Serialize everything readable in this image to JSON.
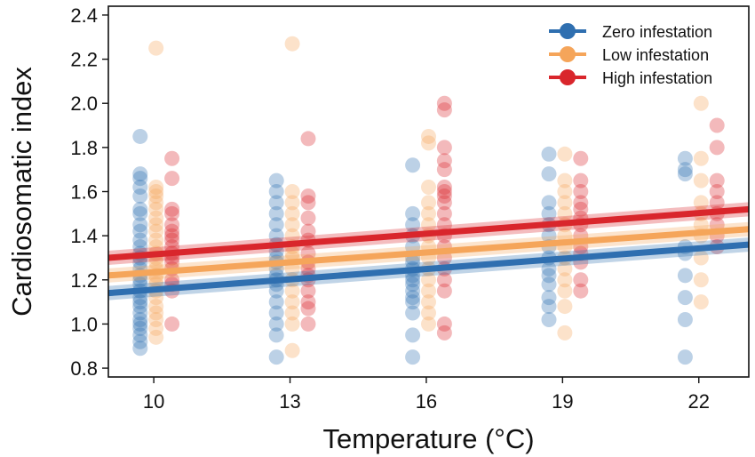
{
  "chart_data": {
    "type": "scatter",
    "xlabel": "Temperature (°C)",
    "ylabel": "Cardiosomatic index",
    "xlim": [
      9.0,
      23.1
    ],
    "ylim": [
      0.76,
      2.44
    ],
    "xticks": [
      10,
      13,
      16,
      19,
      22
    ],
    "xtick_labels": [
      "10",
      "13",
      "16",
      "19",
      "22"
    ],
    "yticks": [
      0.8,
      1.0,
      1.2,
      1.4,
      1.6,
      1.8,
      2.0,
      2.2,
      2.4
    ],
    "ytick_labels": [
      "0.8",
      "1.0",
      "1.2",
      "1.4",
      "1.6",
      "1.8",
      "2.0",
      "2.2",
      "2.4"
    ],
    "grid": false,
    "legend_position": "top-right",
    "series": [
      {
        "name": "Zero infestation",
        "color": "#2f6fb0",
        "jitter": -0.3,
        "fit": {
          "x": [
            9.0,
            23.1
          ],
          "y": [
            1.14,
            1.36
          ]
        },
        "points": [
          {
            "x": 10,
            "y": [
              0.89,
              0.92,
              0.95,
              0.98,
              1.0,
              1.02,
              1.05,
              1.08,
              1.1,
              1.12,
              1.15,
              1.18,
              1.2,
              1.22,
              1.25,
              1.28,
              1.3,
              1.32,
              1.35,
              1.38,
              1.42,
              1.45,
              1.5,
              1.52,
              1.58,
              1.62,
              1.66,
              1.68,
              1.85
            ]
          },
          {
            "x": 13,
            "y": [
              0.85,
              0.95,
              1.0,
              1.05,
              1.1,
              1.15,
              1.18,
              1.2,
              1.22,
              1.25,
              1.28,
              1.3,
              1.33,
              1.36,
              1.4,
              1.45,
              1.5,
              1.55,
              1.6,
              1.65
            ]
          },
          {
            "x": 16,
            "y": [
              0.85,
              0.95,
              1.05,
              1.1,
              1.12,
              1.15,
              1.18,
              1.2,
              1.22,
              1.25,
              1.28,
              1.3,
              1.35,
              1.4,
              1.45,
              1.5,
              1.72
            ]
          },
          {
            "x": 19,
            "y": [
              1.02,
              1.08,
              1.12,
              1.18,
              1.22,
              1.25,
              1.3,
              1.35,
              1.4,
              1.45,
              1.5,
              1.55,
              1.68,
              1.77
            ]
          },
          {
            "x": 22,
            "y": [
              0.85,
              1.02,
              1.12,
              1.22,
              1.32,
              1.35,
              1.68,
              1.7,
              1.75
            ]
          }
        ]
      },
      {
        "name": "Low infestation",
        "color": "#f5a55a",
        "jitter": 0.05,
        "fit": {
          "x": [
            9.0,
            23.1
          ],
          "y": [
            1.22,
            1.43
          ]
        },
        "points": [
          {
            "x": 10,
            "y": [
              0.94,
              0.98,
              1.02,
              1.05,
              1.08,
              1.12,
              1.15,
              1.18,
              1.2,
              1.22,
              1.25,
              1.28,
              1.3,
              1.32,
              1.35,
              1.38,
              1.42,
              1.45,
              1.48,
              1.52,
              1.55,
              1.58,
              1.6,
              1.62,
              2.25
            ]
          },
          {
            "x": 13,
            "y": [
              0.88,
              1.0,
              1.05,
              1.1,
              1.15,
              1.2,
              1.25,
              1.3,
              1.32,
              1.35,
              1.4,
              1.45,
              1.5,
              1.55,
              1.6,
              2.27
            ]
          },
          {
            "x": 16,
            "y": [
              1.0,
              1.05,
              1.1,
              1.15,
              1.2,
              1.25,
              1.3,
              1.35,
              1.4,
              1.45,
              1.5,
              1.55,
              1.62,
              1.82,
              1.85
            ]
          },
          {
            "x": 19,
            "y": [
              0.96,
              1.08,
              1.15,
              1.2,
              1.25,
              1.3,
              1.35,
              1.4,
              1.45,
              1.5,
              1.55,
              1.6,
              1.65,
              1.77
            ]
          },
          {
            "x": 22,
            "y": [
              1.1,
              1.2,
              1.3,
              1.4,
              1.45,
              1.5,
              1.55,
              1.65,
              1.75,
              2.0
            ]
          }
        ]
      },
      {
        "name": "High infestation",
        "color": "#d9262c",
        "jitter": 0.4,
        "fit": {
          "x": [
            9.0,
            23.1
          ],
          "y": [
            1.3,
            1.52
          ]
        },
        "points": [
          {
            "x": 10,
            "y": [
              1.0,
              1.15,
              1.18,
              1.2,
              1.25,
              1.28,
              1.3,
              1.32,
              1.35,
              1.38,
              1.4,
              1.42,
              1.45,
              1.5,
              1.52,
              1.66,
              1.75
            ]
          },
          {
            "x": 13,
            "y": [
              1.0,
              1.07,
              1.1,
              1.15,
              1.2,
              1.22,
              1.25,
              1.28,
              1.32,
              1.38,
              1.42,
              1.48,
              1.55,
              1.58,
              1.84
            ]
          },
          {
            "x": 16,
            "y": [
              0.96,
              1.0,
              1.15,
              1.2,
              1.25,
              1.3,
              1.35,
              1.4,
              1.45,
              1.5,
              1.55,
              1.58,
              1.6,
              1.62,
              1.7,
              1.74,
              1.8,
              1.97,
              2.0
            ]
          },
          {
            "x": 19,
            "y": [
              1.15,
              1.2,
              1.28,
              1.32,
              1.35,
              1.4,
              1.45,
              1.48,
              1.52,
              1.55,
              1.6,
              1.65,
              1.75
            ]
          },
          {
            "x": 22,
            "y": [
              1.35,
              1.4,
              1.45,
              1.5,
              1.55,
              1.6,
              1.65,
              1.8,
              1.9
            ]
          }
        ]
      }
    ]
  }
}
